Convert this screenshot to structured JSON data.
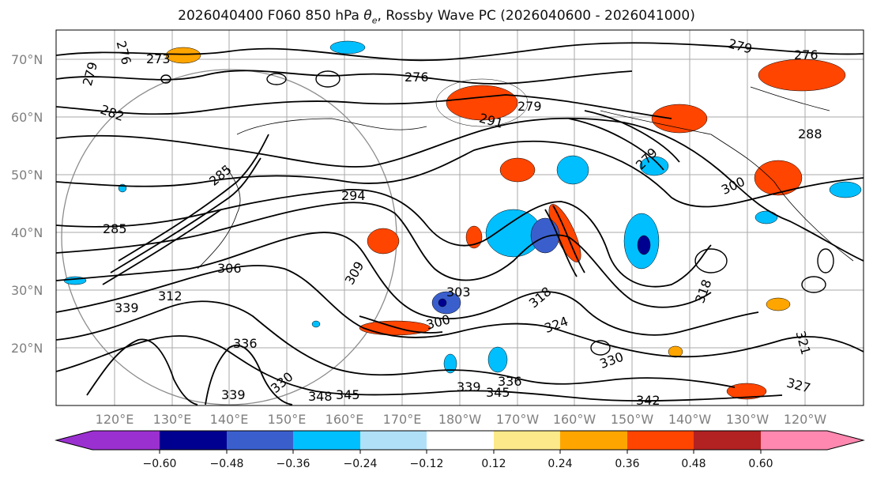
{
  "title": {
    "prefix": "2026040400 F060 850 hPa ",
    "theta": "θ",
    "theta_sub": "e",
    "suffix": ", Rossby Wave PC (2026040600 - 2026041000)"
  },
  "map": {
    "lat_labels": [
      "70°N",
      "60°N",
      "50°N",
      "40°N",
      "30°N",
      "20°N"
    ],
    "lon_labels": [
      "120°E",
      "130°E",
      "140°E",
      "150°E",
      "160°E",
      "170°E",
      "180°W",
      "170°W",
      "160°W",
      "150°W",
      "140°W",
      "130°W",
      "120°W"
    ],
    "contour_labels": [
      "273",
      "276",
      "279",
      "282",
      "285",
      "279",
      "276",
      "291",
      "279",
      "279",
      "276",
      "288",
      "294",
      "285",
      "300",
      "306",
      "309",
      "303",
      "300",
      "318",
      "312",
      "318",
      "324",
      "330",
      "339",
      "339",
      "345",
      "336",
      "339",
      "345",
      "342",
      "327",
      "321",
      "330",
      "336",
      "348"
    ],
    "colors": {
      "contour": "#000000",
      "ring": "#8c8c8c",
      "grid": "#aaaaaa"
    }
  },
  "colorbar": {
    "ticks": [
      "−0.60",
      "−0.48",
      "−0.36",
      "−0.24",
      "−0.12",
      "0.12",
      "0.24",
      "0.36",
      "0.48",
      "0.60"
    ],
    "colors": [
      "#9b30d0",
      "#000090",
      "#3a5fcd",
      "#00bfff",
      "#b0e0f8",
      "#ffffff",
      "#fce98a",
      "#ffa500",
      "#ff4500",
      "#b22222",
      "#ff88b0"
    ]
  }
}
